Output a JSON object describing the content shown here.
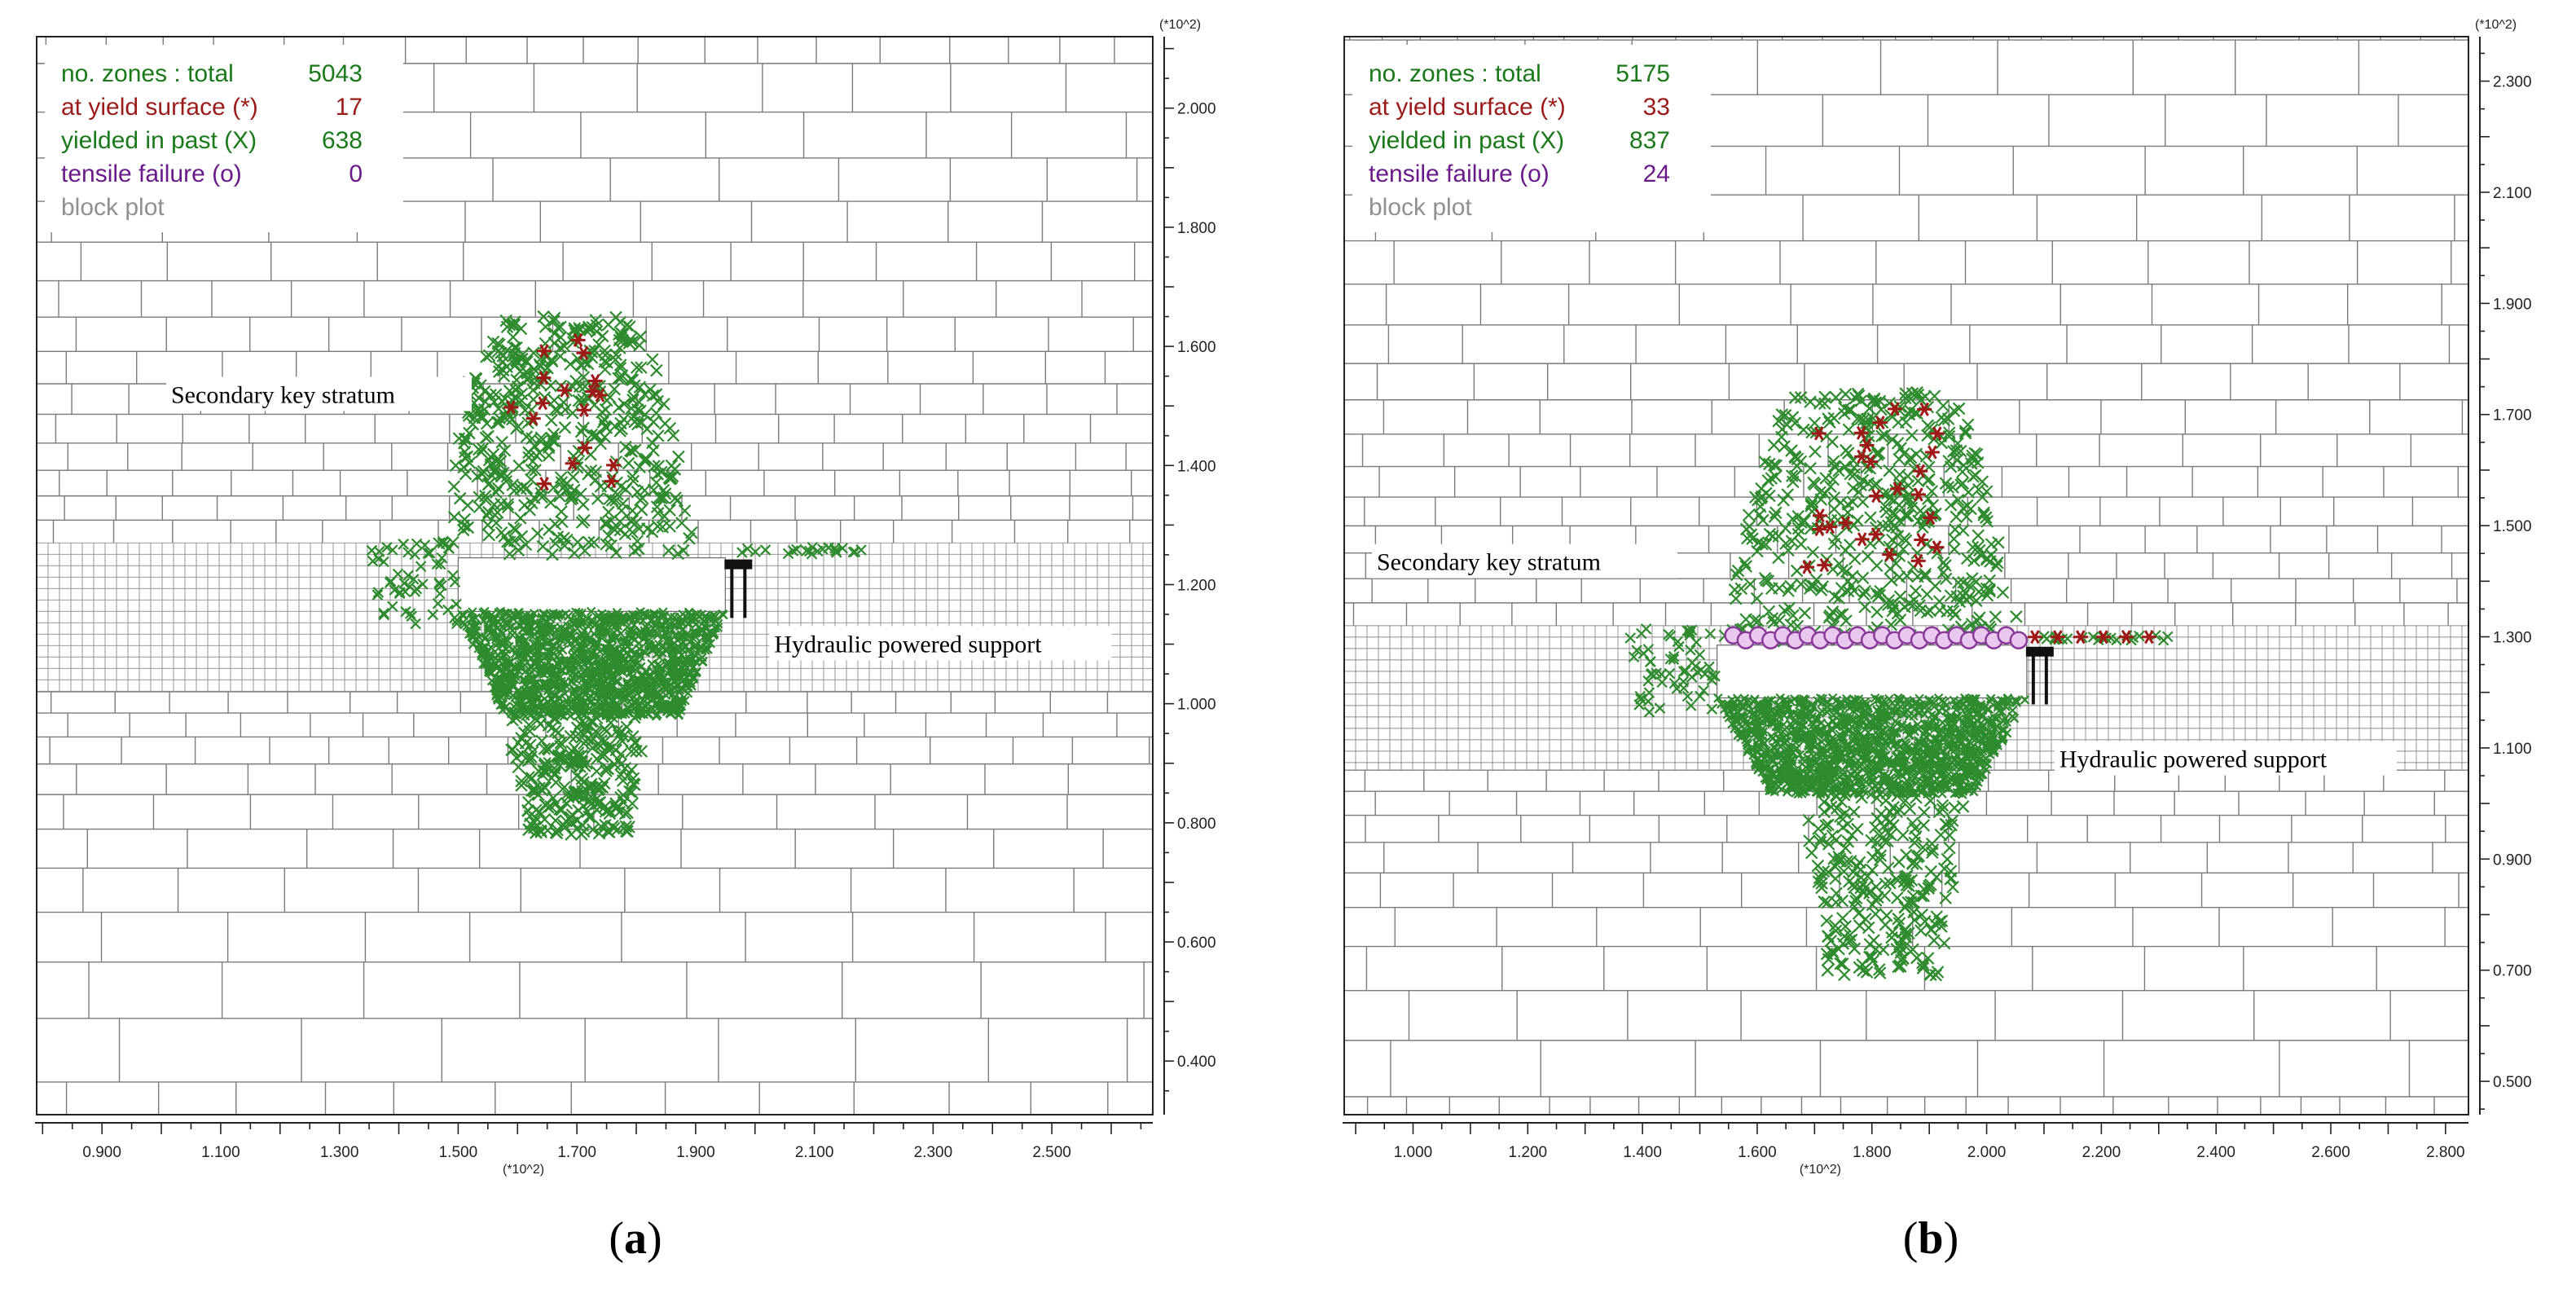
{
  "panels": [
    {
      "caption": "a",
      "legend": [
        {
          "label": "no. zones : total",
          "value": "5043",
          "color": "#1a7a1a"
        },
        {
          "label": "at yield surface (*)",
          "value": "17",
          "color": "#9b1b1b"
        },
        {
          "label": "yielded in past  (X)",
          "value": "638",
          "color": "#1a7a1a"
        },
        {
          "label": "tensile failure  (o)",
          "value": "0",
          "color": "#6a1a8a"
        },
        {
          "label": "block plot",
          "value": "",
          "color": "#909090"
        }
      ],
      "x_ticks": [
        "0.900",
        "1.100",
        "1.300",
        "1.500",
        "1.700",
        "1.900",
        "2.100",
        "2.300",
        "2.500"
      ],
      "x_tick_values": [
        0.9,
        1.1,
        1.3,
        1.5,
        1.7,
        1.9,
        2.1,
        2.3,
        2.5
      ],
      "x_range": [
        0.79,
        2.67
      ],
      "y_ticks": [
        "2.000",
        "1.800",
        "1.600",
        "1.400",
        "1.200",
        "1.000",
        "0.800",
        "0.600",
        "0.400"
      ],
      "y_tick_values": [
        2.0,
        1.8,
        1.6,
        1.4,
        1.2,
        1.0,
        0.8,
        0.6,
        0.4
      ],
      "y_range": [
        0.31,
        2.12
      ],
      "scale_label": "(*10^2)",
      "annotations": {
        "key_stratum": "Secondary key stratum",
        "support": "Hydraulic powered support"
      },
      "goaf": {
        "x0": 1.5,
        "x1": 1.95,
        "y0": 1.155,
        "y1": 1.245
      },
      "fine_band": {
        "y0": 1.02,
        "y1": 1.27
      },
      "yield_zone": {
        "cx": 1.68,
        "top": 1.65,
        "bottom": 0.78,
        "half_width": 0.22
      },
      "tensile_count": 0
    },
    {
      "caption": "b",
      "legend": [
        {
          "label": "no. zones : total",
          "value": "5175",
          "color": "#1a7a1a"
        },
        {
          "label": "at yield surface (*)",
          "value": "33",
          "color": "#9b1b1b"
        },
        {
          "label": "yielded in past  (X)",
          "value": "837",
          "color": "#1a7a1a"
        },
        {
          "label": "tensile failure  (o)",
          "value": "24",
          "color": "#6a1a8a"
        },
        {
          "label": "block plot",
          "value": "",
          "color": "#909090"
        }
      ],
      "x_ticks": [
        "1.000",
        "1.200",
        "1.400",
        "1.600",
        "1.800",
        "2.000",
        "2.200",
        "2.400",
        "2.600",
        "2.800"
      ],
      "x_tick_values": [
        1.0,
        1.2,
        1.4,
        1.6,
        1.8,
        2.0,
        2.2,
        2.4,
        2.6,
        2.8
      ],
      "x_range": [
        0.88,
        2.84
      ],
      "y_ticks": [
        "2.300",
        "2.100",
        "1.900",
        "1.700",
        "1.500",
        "1.300",
        "1.100",
        "0.900",
        "0.700",
        "0.500"
      ],
      "y_tick_values": [
        2.3,
        2.1,
        1.9,
        1.7,
        1.5,
        1.3,
        1.1,
        0.9,
        0.7,
        0.5
      ],
      "y_range": [
        0.44,
        2.38
      ],
      "scale_label": "(*10^2)",
      "annotations": {
        "key_stratum": "Secondary key stratum",
        "support": "Hydraulic powered support"
      },
      "goaf": {
        "x0": 1.53,
        "x1": 2.07,
        "y0": 1.19,
        "y1": 1.285
      },
      "fine_band": {
        "y0": 1.06,
        "y1": 1.32
      },
      "yield_zone": {
        "cx": 1.8,
        "top": 1.74,
        "bottom": 0.69,
        "half_width": 0.26
      },
      "tensile_count": 24
    }
  ]
}
